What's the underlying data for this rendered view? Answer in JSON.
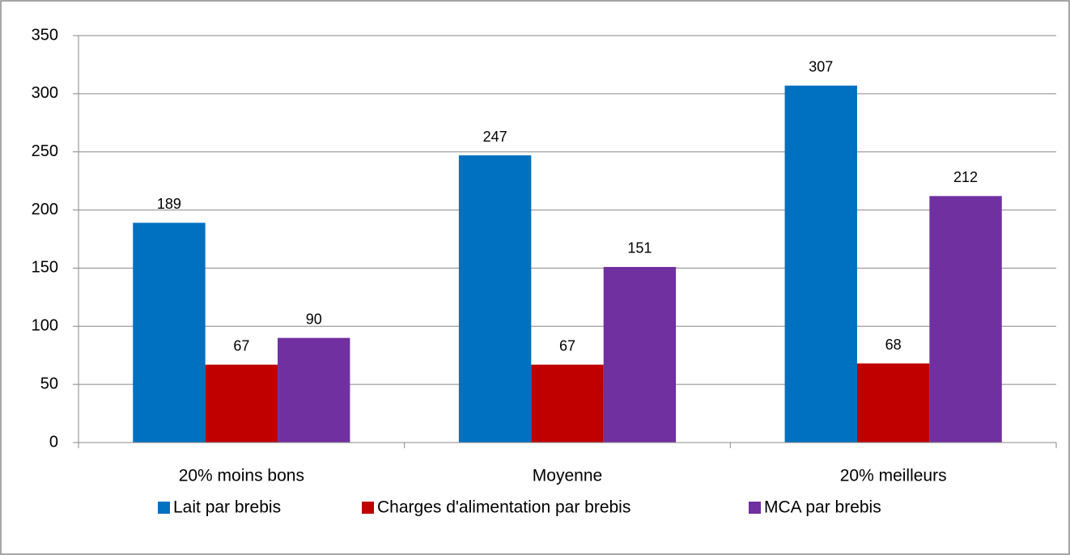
{
  "chart_data": {
    "type": "bar",
    "categories": [
      "20% moins bons",
      "Moyenne",
      "20% meilleurs"
    ],
    "series": [
      {
        "name": "Lait par brebis",
        "color": "#0070c0",
        "values": [
          189,
          247,
          307
        ]
      },
      {
        "name": "Charges d'alimentation par brebis",
        "color": "#c00000",
        "values": [
          67,
          67,
          68
        ]
      },
      {
        "name": "MCA par brebis",
        "color": "#7030a0",
        "values": [
          90,
          151,
          212
        ]
      }
    ],
    "ylim": [
      0,
      350
    ],
    "yticks": [
      0,
      50,
      100,
      150,
      200,
      250,
      300,
      350
    ],
    "grid": true,
    "legend": "bottom"
  }
}
